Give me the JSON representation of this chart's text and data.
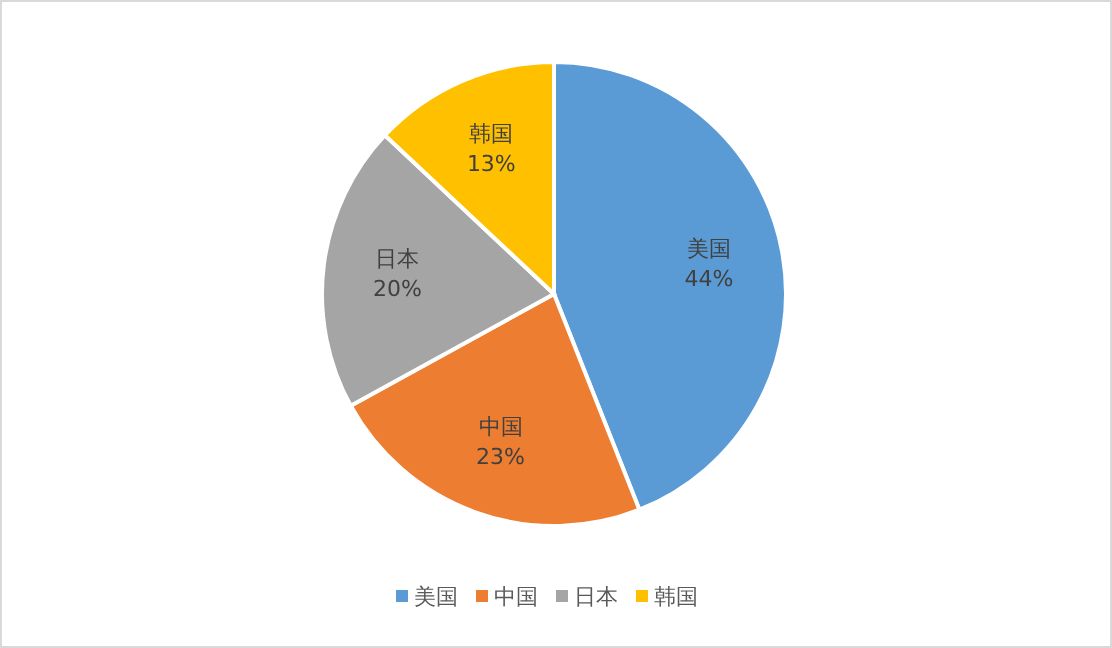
{
  "chart_data": {
    "type": "pie",
    "categories": [
      "美国",
      "中国",
      "日本",
      "韩国"
    ],
    "values": [
      44,
      23,
      20,
      13
    ],
    "value_labels": [
      "44%",
      "23%",
      "20%",
      "13%"
    ],
    "colors": [
      "#5b9bd5",
      "#ed7d31",
      "#a5a5a5",
      "#ffc000"
    ],
    "legend": "bottom"
  }
}
